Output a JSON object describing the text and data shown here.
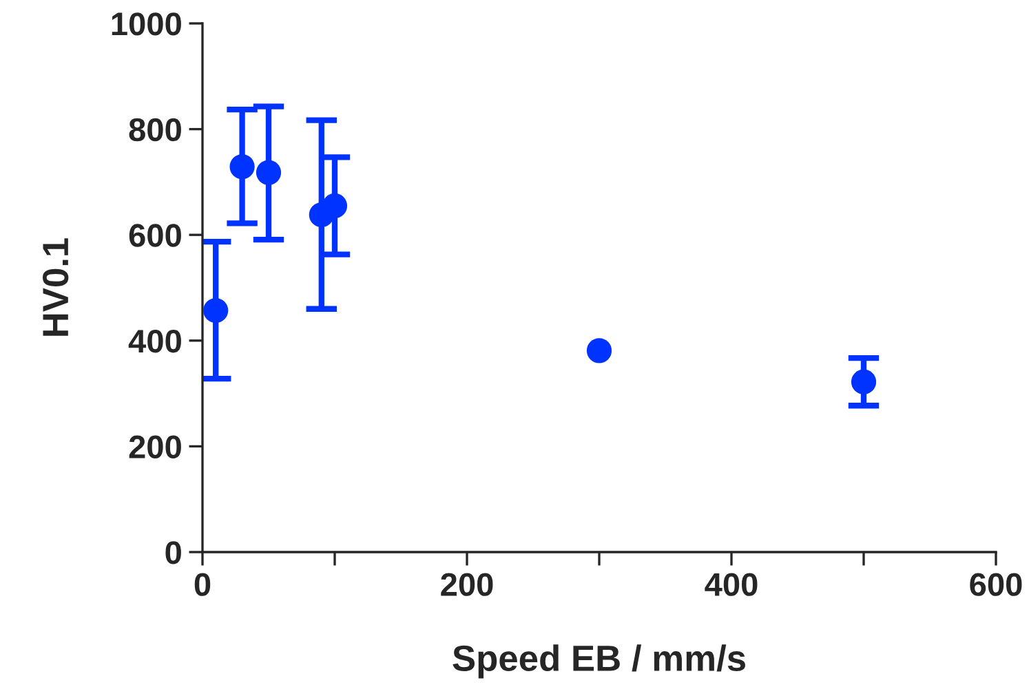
{
  "chart_data": {
    "type": "scatter",
    "xlabel": "Speed EB / mm/s",
    "ylabel": "HV0.1",
    "x": [
      10,
      30,
      50,
      90,
      100,
      300,
      500
    ],
    "values": [
      457,
      729,
      718,
      638,
      655,
      381,
      322
    ],
    "errors": [
      [
        328,
        587
      ],
      [
        622,
        837
      ],
      [
        591,
        843
      ],
      [
        460,
        817
      ],
      [
        563,
        747
      ],
      null,
      [
        277,
        367
      ]
    ],
    "color": "#0033ff",
    "marker": "circle",
    "grid": false,
    "legend": false,
    "xlim": [
      0,
      600
    ],
    "xticks": [
      0,
      {
        "value": 100,
        "label": null
      },
      200,
      {
        "value": 300,
        "label": null
      },
      400,
      {
        "value": 500,
        "label": null
      },
      600
    ],
    "ylim": [
      0,
      1000
    ],
    "yticks": [
      0,
      200,
      400,
      600,
      800,
      1000
    ]
  }
}
